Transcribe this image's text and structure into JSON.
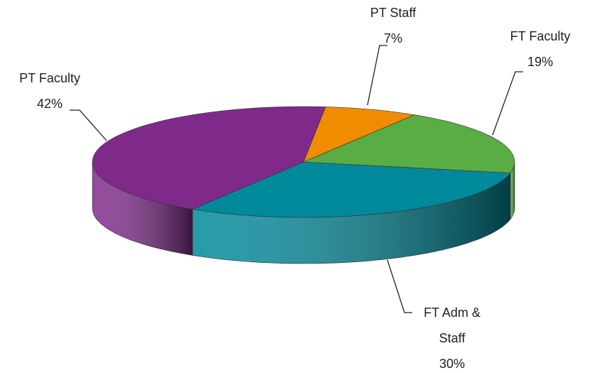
{
  "chart_data": {
    "type": "pie",
    "categories": [
      "PT Staff",
      "FT Faculty",
      "FT Adm & Staff",
      "PT Faculty"
    ],
    "values": [
      7,
      19,
      30,
      42
    ],
    "value_labels": [
      "7%",
      "19%",
      "30%",
      "42%"
    ],
    "colors": [
      "#f08c00",
      "#5aac44",
      "#00899a",
      "#7f2a8a"
    ]
  }
}
